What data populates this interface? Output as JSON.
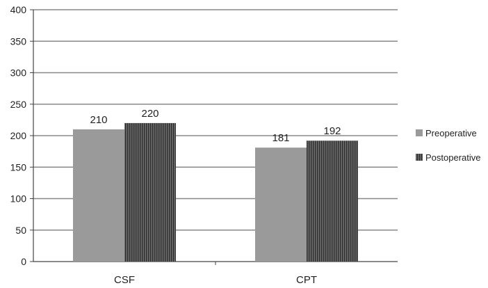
{
  "chart_data": {
    "type": "bar",
    "categories": [
      "CSF",
      "CPT"
    ],
    "series": [
      {
        "name": "Preoperative",
        "values": [
          210,
          181
        ],
        "color": "#9a9a9a",
        "pattern": "solid"
      },
      {
        "name": "Postoperative",
        "values": [
          220,
          192
        ],
        "color": "#555555",
        "pattern": "vertical-stripes"
      }
    ],
    "y_ticks": [
      0,
      50,
      100,
      150,
      200,
      250,
      300,
      350,
      400
    ],
    "ylim": [
      0,
      400
    ],
    "grid": true,
    "legend_position": "right",
    "data_labels": true
  }
}
